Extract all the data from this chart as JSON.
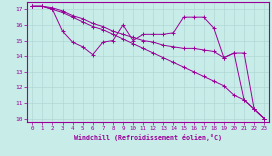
{
  "xlabel": "Windchill (Refroidissement éolien,°C)",
  "bg_color": "#c8ece8",
  "line_color": "#990099",
  "grid_color": "#b0d8d4",
  "xlim": [
    -0.5,
    23.5
  ],
  "ylim": [
    9.8,
    17.5
  ],
  "yticks": [
    10,
    11,
    12,
    13,
    14,
    15,
    16,
    17
  ],
  "xticks": [
    0,
    1,
    2,
    3,
    4,
    5,
    6,
    7,
    8,
    9,
    10,
    11,
    12,
    13,
    14,
    15,
    16,
    17,
    18,
    19,
    20,
    21,
    22,
    23
  ],
  "lines": [
    {
      "x": [
        0,
        1,
        2,
        3,
        4,
        5,
        6,
        7,
        8,
        9,
        10,
        11,
        12,
        13,
        14,
        15,
        16,
        17,
        18,
        19,
        20,
        21,
        22,
        23
      ],
      "y": [
        17.2,
        17.2,
        17.0,
        16.8,
        16.5,
        16.2,
        15.9,
        15.7,
        15.4,
        15.1,
        14.8,
        14.5,
        14.2,
        13.9,
        13.6,
        13.3,
        13.0,
        12.7,
        12.4,
        12.1,
        11.5,
        11.2,
        10.6,
        10.0
      ]
    },
    {
      "x": [
        0,
        1,
        2,
        3,
        4,
        5,
        6,
        7,
        8,
        9,
        10,
        11,
        12,
        13,
        14,
        15,
        16,
        17,
        18,
        19,
        20,
        21,
        22,
        23
      ],
      "y": [
        17.2,
        17.2,
        17.0,
        15.6,
        14.9,
        14.6,
        14.1,
        14.9,
        15.0,
        16.0,
        15.0,
        15.4,
        15.4,
        15.4,
        15.5,
        16.5,
        16.5,
        16.5,
        15.8,
        13.9,
        14.2,
        14.2,
        10.6,
        10.0
      ]
    },
    {
      "x": [
        0,
        1,
        2,
        3,
        4,
        5,
        6,
        7,
        8,
        9,
        10,
        11,
        12,
        13,
        14,
        15,
        16,
        17,
        18,
        19,
        20,
        21,
        22,
        23
      ],
      "y": [
        17.2,
        17.2,
        17.1,
        16.9,
        16.6,
        16.4,
        16.1,
        15.9,
        15.6,
        15.4,
        15.2,
        15.0,
        14.9,
        14.7,
        14.6,
        14.5,
        14.5,
        14.4,
        14.3,
        13.9,
        14.2,
        11.2,
        10.6,
        10.0
      ]
    }
  ]
}
